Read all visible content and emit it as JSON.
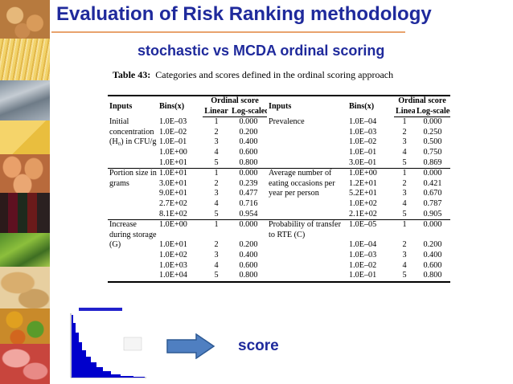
{
  "title": "Evaluation of Risk Ranking methodology",
  "subtitle": "stochastic vs MCDA ordinal scoring",
  "table": {
    "caption_label": "Table 43:",
    "caption_text": "Categories and scores defined in the ordinal scoring approach",
    "headers": {
      "inputs": "Inputs",
      "bins": "Bins(x)",
      "ordinal_score": "Ordinal score",
      "linear": "Linear",
      "log_scaled": "Log-scaled"
    },
    "rows": [
      [
        "Initial",
        "1.0E–03",
        "1",
        "0.000",
        "Prevalence",
        "1.0E–04",
        "1",
        "0.000"
      ],
      [
        "concentration",
        "1.0E–02",
        "2",
        "0.200",
        "",
        "1.0E–03",
        "2",
        "0.250"
      ],
      [
        "(H₀) in CFU/g",
        "1.0E–01",
        "3",
        "0.400",
        "",
        "1.0E–02",
        "3",
        "0.500"
      ],
      [
        "",
        "1.0E+00",
        "4",
        "0.600",
        "",
        "1.0E–01",
        "4",
        "0.750"
      ],
      [
        "",
        "1.0E+01",
        "5",
        "0.800",
        "",
        "3.0E–01",
        "5",
        "0.869"
      ],
      [
        "Portion size in",
        "1.0E+01",
        "1",
        "0.000",
        "Average number of",
        "1.0E+00",
        "1",
        "0.000"
      ],
      [
        "grams",
        "3.0E+01",
        "2",
        "0.239",
        "eating occasions per",
        "1.2E+01",
        "2",
        "0.421"
      ],
      [
        "",
        "9.0E+01",
        "3",
        "0.477",
        "year per person",
        "5.2E+01",
        "3",
        "0.670"
      ],
      [
        "",
        "2.7E+02",
        "4",
        "0.716",
        "",
        "1.0E+02",
        "4",
        "0.787"
      ],
      [
        "",
        "8.1E+02",
        "5",
        "0.954",
        "",
        "2.1E+02",
        "5",
        "0.905"
      ],
      [
        "Increase",
        "1.0E+00",
        "1",
        "0.000",
        "Probability of transfer",
        "1.0E–05",
        "1",
        "0.000"
      ],
      [
        "during storage",
        "",
        "",
        "",
        "to RTE (C)",
        "",
        "",
        ""
      ],
      [
        "(G)",
        "1.0E+01",
        "2",
        "0.200",
        "",
        "1.0E–04",
        "2",
        "0.200"
      ],
      [
        "",
        "1.0E+02",
        "3",
        "0.400",
        "",
        "1.0E–03",
        "3",
        "0.400"
      ],
      [
        "",
        "1.0E+03",
        "4",
        "0.600",
        "",
        "1.0E–02",
        "4",
        "0.600"
      ],
      [
        "",
        "1.0E+04",
        "5",
        "0.800",
        "",
        "1.0E–01",
        "5",
        "0.800"
      ]
    ]
  },
  "score_label": "score",
  "colors": {
    "title": "#1f2a9c",
    "rule": "#e8a36d",
    "arrow_fill": "#4f7fc1",
    "arrow_stroke": "#2e5a94",
    "histogram": "#0000cc"
  },
  "icons": {
    "arrow": "right-arrow-icon",
    "food_strip": "food-photo-strip"
  }
}
